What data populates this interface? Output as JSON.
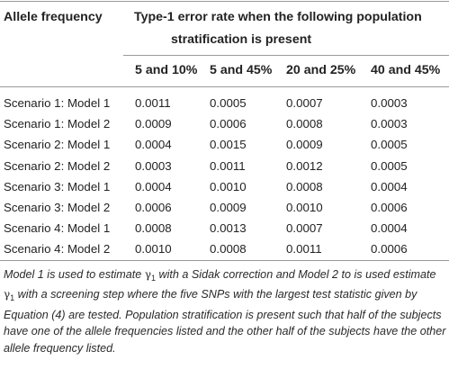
{
  "table": {
    "header_col": "Allele frequency",
    "header_span_line1": "Type-1 error rate when the following population",
    "header_span_line2": "stratification is present",
    "columns": [
      "5 and 10%",
      "5 and 45%",
      "20 and 25%",
      "40 and 45%"
    ],
    "rows": [
      {
        "label": "Scenario 1: Model 1",
        "values": [
          "0.0011",
          "0.0005",
          "0.0007",
          "0.0003"
        ]
      },
      {
        "label": "Scenario 1: Model 2",
        "values": [
          "0.0009",
          "0.0006",
          "0.0008",
          "0.0003"
        ]
      },
      {
        "label": "Scenario 2: Model 1",
        "values": [
          "0.0004",
          "0.0015",
          "0.0009",
          "0.0005"
        ]
      },
      {
        "label": "Scenario 2: Model 2",
        "values": [
          "0.0003",
          "0.0011",
          "0.0012",
          "0.0005"
        ]
      },
      {
        "label": "Scenario 3: Model 1",
        "values": [
          "0.0004",
          "0.0010",
          "0.0008",
          "0.0004"
        ]
      },
      {
        "label": "Scenario 3: Model 2",
        "values": [
          "0.0006",
          "0.0009",
          "0.0010",
          "0.0006"
        ]
      },
      {
        "label": "Scenario 4: Model 1",
        "values": [
          "0.0008",
          "0.0013",
          "0.0007",
          "0.0004"
        ]
      },
      {
        "label": "Scenario 4: Model 2",
        "values": [
          "0.0010",
          "0.0008",
          "0.0011",
          "0.0006"
        ]
      }
    ]
  },
  "footnote": {
    "p1": "Model 1 is used to estimate ",
    "gamma1": "γ",
    "sub1": "1",
    "p2": " with a Sidak correction and Model 2 to is used estimate ",
    "gamma2": "γ",
    "sub2": "1",
    "p3": " with a screening step where the five SNPs with the largest test statistic given by Equation (4) are tested. Population stratification is present such that half of the subjects have one of the allele frequencies listed and the other half of the subjects have the other allele frequency listed."
  }
}
